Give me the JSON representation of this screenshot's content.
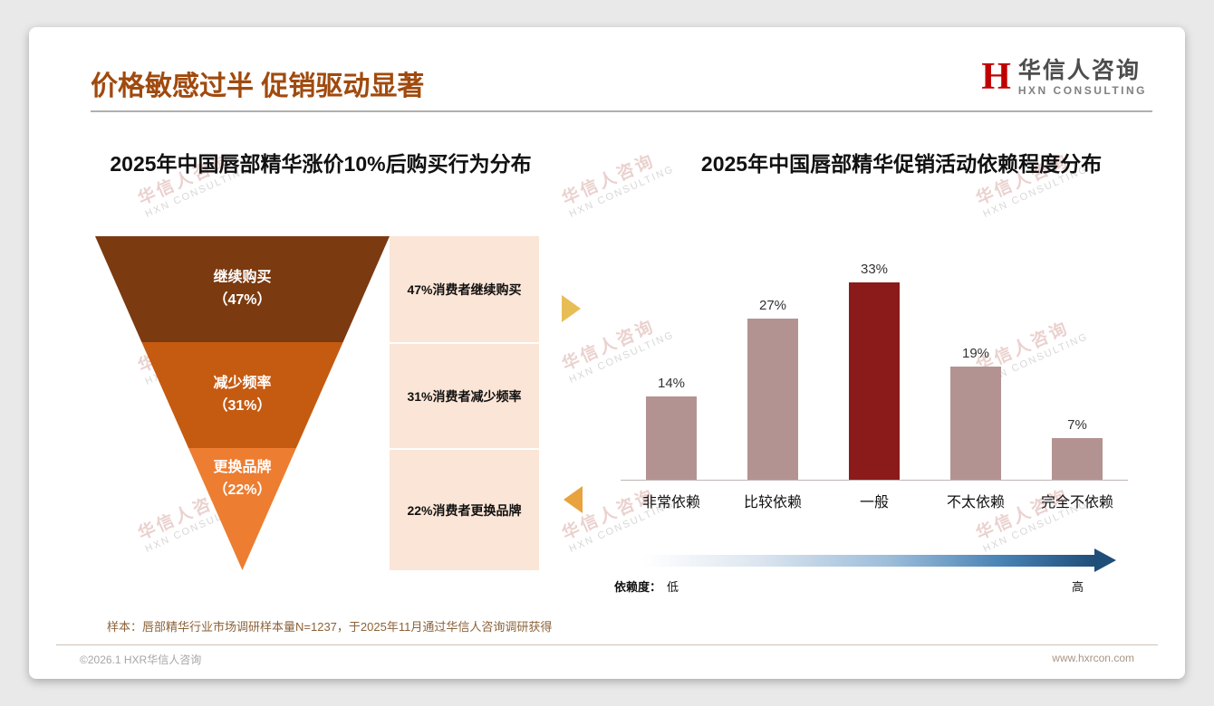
{
  "page": {
    "header": {
      "title": "价格敏感过半 促销驱动显著"
    },
    "logo": {
      "mark": "H",
      "name": "华信人咨询",
      "subtitle": "HXN CONSULTING"
    },
    "watermark": {
      "line1": "华信人咨询",
      "line2": "HXN CONSULTING"
    },
    "sample_note": "样本：唇部精华行业市场调研样本量N=1237，于2025年11月通过华信人咨询调研获得",
    "footer": {
      "copyright": "©2026.1 HXR华信人咨询",
      "website": "www.hxrcon.com"
    }
  },
  "chart_data": [
    {
      "type": "funnel",
      "title": "2025年中国唇部精华涨价10%后购买行为分布",
      "segments": [
        {
          "label": "继续购买",
          "value": 47,
          "value_label": "（47%）",
          "annotation": "47%消费者继续购买",
          "color": "#7B3A10"
        },
        {
          "label": "减少频率",
          "value": 31,
          "value_label": "（31%）",
          "annotation": "31%消费者减少频率",
          "color": "#C55A11"
        },
        {
          "label": "更换品牌",
          "value": 22,
          "value_label": "（22%）",
          "annotation": "22%消费者更换品牌",
          "color": "#ED7D31"
        }
      ],
      "annotation_bg": "#FBE5D6"
    },
    {
      "type": "bar",
      "title": "2025年中国唇部精华促销活动依赖程度分布",
      "categories": [
        "非常依赖",
        "比较依赖",
        "一般",
        "不太依赖",
        "完全不依赖"
      ],
      "values": [
        14,
        27,
        33,
        19,
        7
      ],
      "value_suffix": "%",
      "highlight_index": 2,
      "bar_color": "#B39391",
      "highlight_color": "#8B1A1A",
      "ylim": [
        0,
        35
      ],
      "grid": false,
      "legend": {
        "label": "依赖度：",
        "low": "低",
        "high": "高"
      },
      "gradient_colors": [
        "#FFFFFF",
        "#1F4E79"
      ]
    }
  ]
}
